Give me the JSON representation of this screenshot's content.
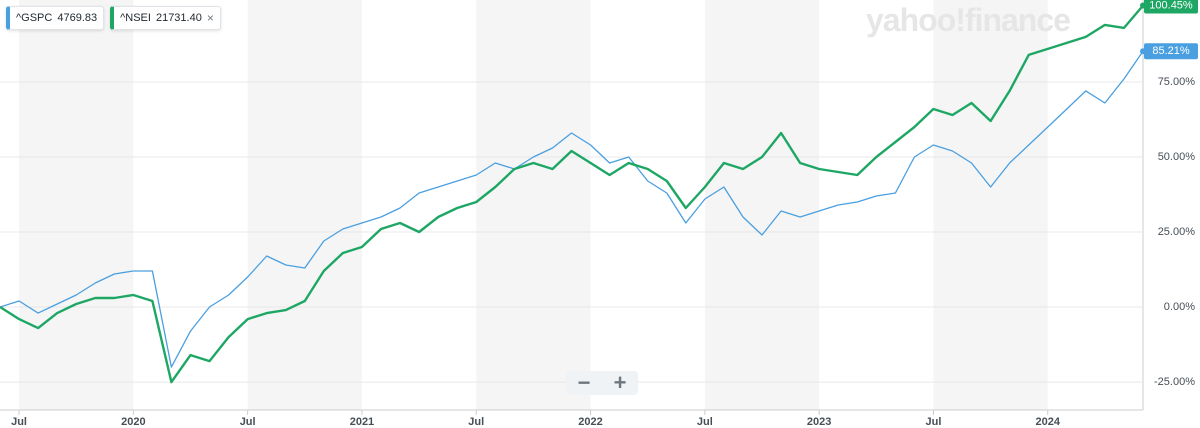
{
  "chart_data": {
    "type": "line",
    "x": [
      "2019-06",
      "2019-07",
      "2019-08",
      "2019-09",
      "2019-10",
      "2019-11",
      "2019-12",
      "2020-01",
      "2020-02",
      "2020-03",
      "2020-04",
      "2020-05",
      "2020-06",
      "2020-07",
      "2020-08",
      "2020-09",
      "2020-10",
      "2020-11",
      "2020-12",
      "2021-01",
      "2021-02",
      "2021-03",
      "2021-04",
      "2021-05",
      "2021-06",
      "2021-07",
      "2021-08",
      "2021-09",
      "2021-10",
      "2021-11",
      "2021-12",
      "2022-01",
      "2022-02",
      "2022-03",
      "2022-04",
      "2022-05",
      "2022-06",
      "2022-07",
      "2022-08",
      "2022-09",
      "2022-10",
      "2022-11",
      "2022-12",
      "2023-01",
      "2023-02",
      "2023-03",
      "2023-04",
      "2023-05",
      "2023-06",
      "2023-07",
      "2023-08",
      "2023-09",
      "2023-10",
      "2023-11",
      "2023-12",
      "2024-01",
      "2024-02",
      "2024-03",
      "2024-04",
      "2024-05",
      "2024-06"
    ],
    "series": [
      {
        "name": "^GSPC",
        "quote": "4769.83",
        "color": "#4a9fe0",
        "last_label": "85.21%",
        "values": [
          0,
          2,
          -2,
          1,
          4,
          8,
          11,
          12,
          12,
          -20,
          -8,
          0,
          4,
          10,
          17,
          14,
          13,
          22,
          26,
          28,
          30,
          33,
          38,
          40,
          42,
          44,
          48,
          46,
          50,
          53,
          58,
          54,
          48,
          50,
          42,
          38,
          28,
          36,
          40,
          30,
          24,
          32,
          30,
          32,
          34,
          35,
          37,
          38,
          50,
          54,
          52,
          48,
          40,
          48,
          54,
          60,
          66,
          72,
          68,
          76,
          85.21
        ]
      },
      {
        "name": "^NSEI",
        "quote": "21731.40",
        "color": "#1ea764",
        "last_label": "100.45%",
        "values": [
          0,
          -4,
          -7,
          -2,
          1,
          3,
          3,
          4,
          2,
          -25,
          -16,
          -18,
          -10,
          -4,
          -2,
          -1,
          2,
          12,
          18,
          20,
          26,
          28,
          25,
          30,
          33,
          35,
          40,
          46,
          48,
          46,
          52,
          48,
          44,
          48,
          46,
          42,
          33,
          40,
          48,
          46,
          50,
          58,
          48,
          46,
          45,
          44,
          50,
          55,
          60,
          66,
          64,
          68,
          62,
          72,
          84,
          86,
          88,
          90,
          94,
          93,
          100.45
        ]
      }
    ],
    "xlim": [
      "2019-06",
      "2024-06"
    ],
    "xticks": [
      {
        "value": "2019-07",
        "label": "Jul"
      },
      {
        "value": "2020-01",
        "label": "2020"
      },
      {
        "value": "2020-07",
        "label": "Jul"
      },
      {
        "value": "2021-01",
        "label": "2021"
      },
      {
        "value": "2021-07",
        "label": "Jul"
      },
      {
        "value": "2022-01",
        "label": "2022"
      },
      {
        "value": "2022-07",
        "label": "Jul"
      },
      {
        "value": "2023-01",
        "label": "2023"
      },
      {
        "value": "2023-07",
        "label": "Jul"
      },
      {
        "value": "2024-01",
        "label": "2024"
      }
    ],
    "ylim": [
      -34.3,
      102.3
    ],
    "yticks": [
      {
        "value": -25,
        "label": "-25.00%"
      },
      {
        "value": 0,
        "label": "0.00%"
      },
      {
        "value": 25,
        "label": "25.00%"
      },
      {
        "value": 50,
        "label": "50.00%"
      },
      {
        "value": 75,
        "label": "75.00%"
      }
    ],
    "grid": true
  }
}
